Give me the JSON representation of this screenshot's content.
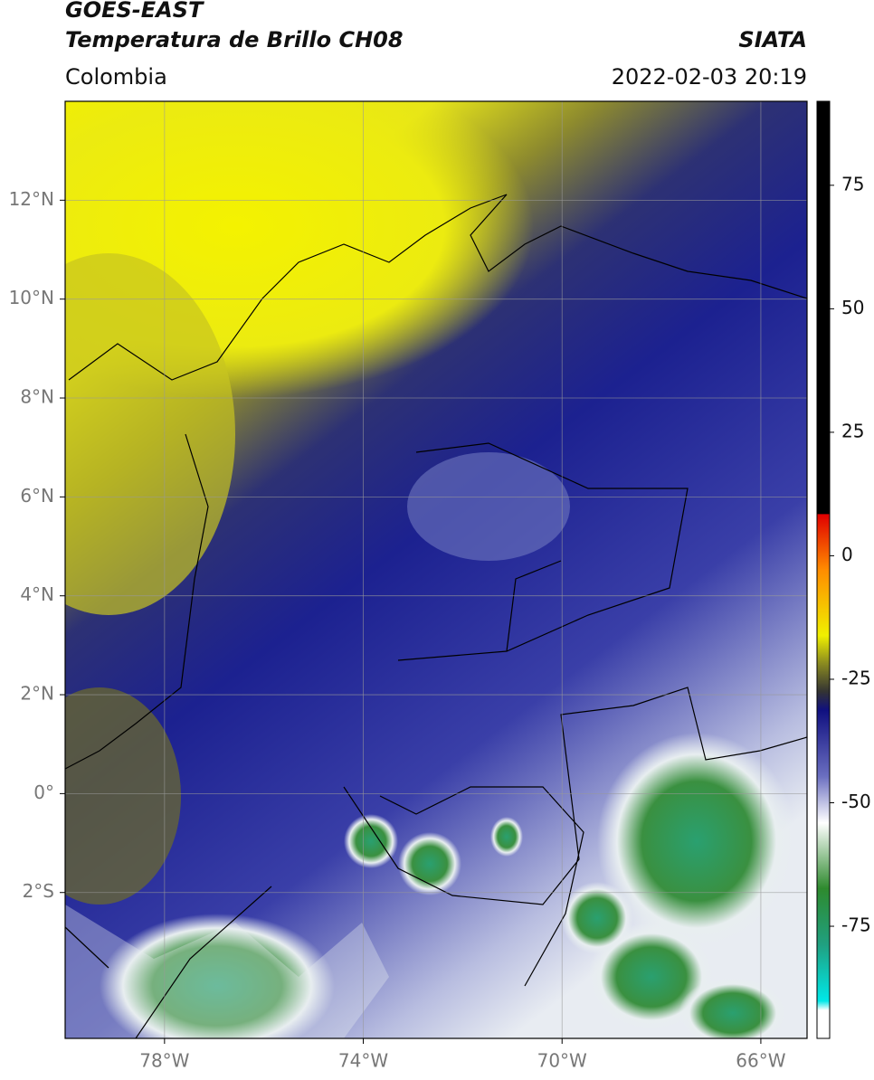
{
  "header": {
    "title": "GOES-EAST",
    "subtitle": "Temperatura de Brillo CH08",
    "source": "SIATA",
    "region": "Colombia",
    "timestamp": "2022-02-03 20:19"
  },
  "chart_data": {
    "type": "map",
    "xlim": [
      -80,
      -65.07
    ],
    "ylim": [
      -4.95,
      14.0
    ],
    "xticks": [
      {
        "value": -78,
        "label": "78°W"
      },
      {
        "value": -74,
        "label": "74°W"
      },
      {
        "value": -70,
        "label": "70°W"
      },
      {
        "value": -66,
        "label": "66°W"
      }
    ],
    "yticks": [
      {
        "value": 12,
        "label": "12°N"
      },
      {
        "value": 10,
        "label": "10°N"
      },
      {
        "value": 8,
        "label": "8°N"
      },
      {
        "value": 6,
        "label": "6°N"
      },
      {
        "value": 4,
        "label": "4°N"
      },
      {
        "value": 2,
        "label": "2°N"
      },
      {
        "value": 0,
        "label": "0°"
      },
      {
        "value": -2,
        "label": "2°S"
      }
    ],
    "grid": true,
    "colorbar": {
      "lim": [
        -97.7,
        92
      ],
      "ticks": [
        75,
        50,
        25,
        0,
        -25,
        -50,
        -75
      ]
    }
  }
}
